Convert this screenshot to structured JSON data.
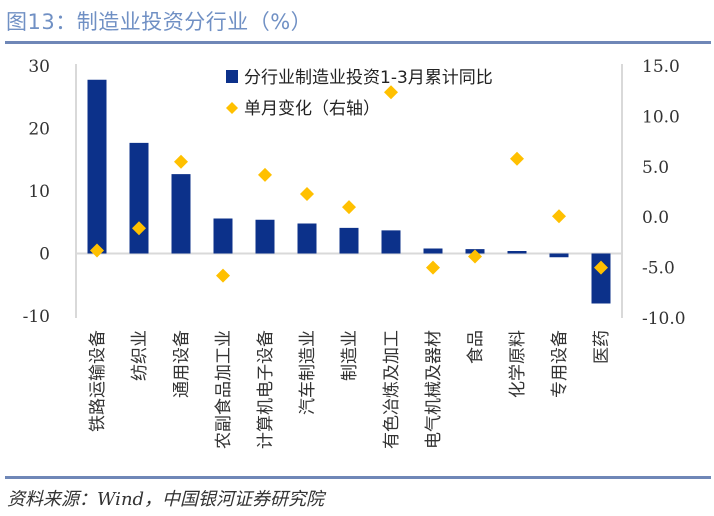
{
  "header": {
    "title": "图13：制造业投资分行业（%）"
  },
  "footer": {
    "source": "资料来源：Wind，中国银河证券研究院"
  },
  "colors": {
    "bar": "#0c318a",
    "marker": "#ffc000",
    "title": "#7090c4",
    "rule": "#6f87b7",
    "axis": "#d9d9d9"
  },
  "chart_data": {
    "type": "bar",
    "title": "制造业投资分行业（%）",
    "xlabel": "",
    "ylabel": "",
    "categories": [
      "铁路运输设备",
      "纺织业",
      "通用设备",
      "农副食品加工业",
      "计算机电子设备",
      "汽车制造业",
      "制造业",
      "有色冶炼及加工",
      "电气机械及器材",
      "食品",
      "化学原料",
      "专用设备",
      "医药"
    ],
    "series": [
      {
        "name": "分行业制造业投资1-3月累计同比",
        "type": "bar",
        "axis": "left",
        "values": [
          27.8,
          17.7,
          12.7,
          5.6,
          5.4,
          4.8,
          4.1,
          3.7,
          0.8,
          0.7,
          0.4,
          -0.6,
          -8.0
        ]
      },
      {
        "name": "单月变化（右轴）",
        "type": "scatter",
        "marker": "diamond",
        "axis": "right",
        "values": [
          -3.3,
          -1.1,
          5.5,
          -5.8,
          4.2,
          2.3,
          1.0,
          12.4,
          -5.0,
          -3.9,
          5.8,
          0.1,
          -5.0
        ]
      }
    ],
    "ylim": [
      -10,
      30
    ],
    "yticks": [
      "30",
      "20",
      "10",
      "0",
      "-10"
    ],
    "yticks_values": [
      30,
      20,
      10,
      0,
      -10
    ],
    "y2lim": [
      -10,
      15
    ],
    "y2ticks": [
      "15.0",
      "10.0",
      "5.0",
      "0.0",
      "-5.0",
      "-10.0"
    ],
    "y2ticks_values": [
      15,
      10,
      5,
      0,
      -5,
      -10
    ],
    "legend": {
      "placement": "top-center",
      "entries": [
        "分行业制造业投资1-3月累计同比",
        "单月变化（右轴）"
      ]
    },
    "grid": false
  }
}
